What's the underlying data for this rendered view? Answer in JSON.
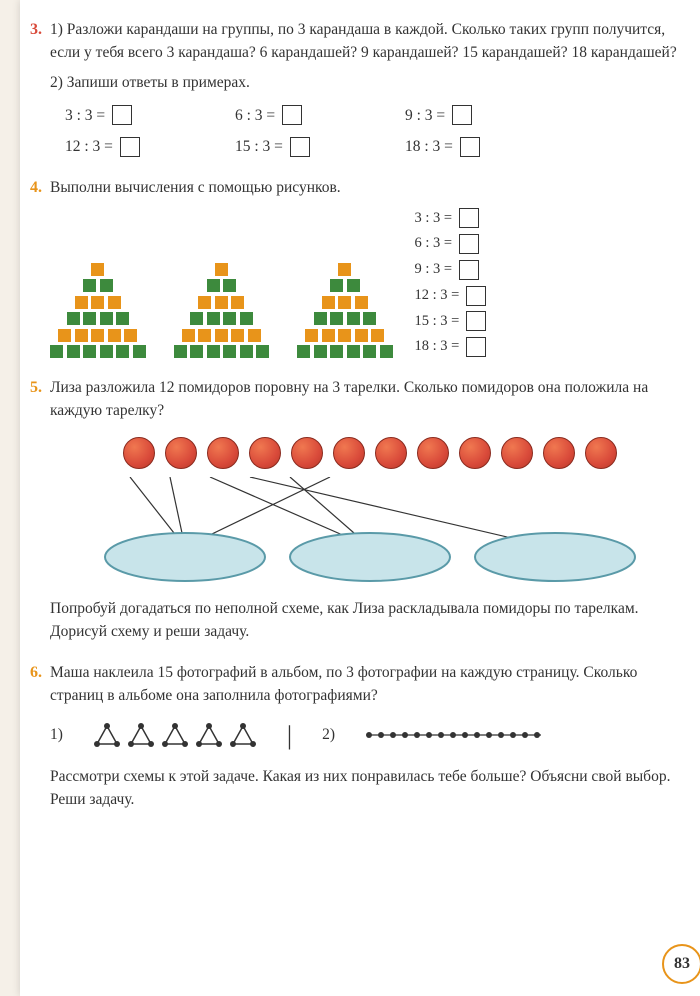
{
  "page_number": "83",
  "colors": {
    "orange": "#e8941a",
    "green": "#3d8a3d",
    "red_orange": "#d94a3a",
    "text": "#333333",
    "box_border": "#333333"
  },
  "task3": {
    "num": "3.",
    "part1_label": "1)",
    "part1_text": "Разложи карандаши на группы, по 3 карандаша в каждой. Сколько таких групп получится, если у тебя всего 3 карандаша? 6 карандашей? 9 карандашей? 15 карандашей? 18 карандашей?",
    "part2_label": "2)",
    "part2_text": "Запиши ответы в примерах.",
    "equations": [
      "3 : 3 =",
      "6 : 3 =",
      "9 : 3 =",
      "12 : 3 =",
      "15 : 3 =",
      "18 : 3 ="
    ]
  },
  "task4": {
    "num": "4.",
    "text": "Выполни вычисления с помощью рисунков.",
    "equations": [
      "3 : 3 =",
      "6 : 3 =",
      "9 : 3 =",
      "12 : 3 =",
      "15 : 3 =",
      "18 : 3 ="
    ],
    "pyramid_colors_pattern": [
      "#e8941a",
      "#3d8a3d"
    ],
    "pyramid_rows": 6
  },
  "task5": {
    "num": "5.",
    "text": "Лиза разложила 12 помидоров поровну на 3 тарелки. Сколько помидоров она положила на каждую тарелку?",
    "tomato_count": 12,
    "plate_count": 3,
    "plate_color": "#a8d4dd",
    "followup": "Попробуй догадаться по неполной схеме, как Лиза раскладывала помидоры по тарелкам. Дорисуй схему и реши задачу."
  },
  "task6": {
    "num": "6.",
    "text": "Маша наклеила 15 фотографий в альбом, по 3 фотографии на каждую страницу. Сколько страниц в альбоме она заполнила фотографиями?",
    "opt1": "1)",
    "opt2": "2)",
    "triangle_count": 5,
    "dots_count": 15,
    "followup": "Рассмотри схемы к этой задаче. Какая из них понравилась тебе больше? Объясни свой выбор. Реши задачу."
  }
}
